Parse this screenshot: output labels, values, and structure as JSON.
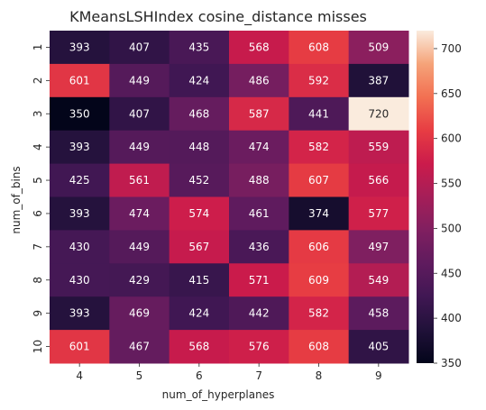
{
  "chart_data": {
    "type": "heatmap",
    "title": "KMeansLSHIndex cosine_distance misses",
    "xlabel": "num_of_hyperplanes",
    "ylabel": "num_of_bins",
    "x_categories": [
      "4",
      "5",
      "6",
      "7",
      "8",
      "9"
    ],
    "y_categories": [
      "1",
      "2",
      "3",
      "4",
      "5",
      "6",
      "7",
      "8",
      "9",
      "10"
    ],
    "values": [
      [
        393,
        407,
        435,
        568,
        608,
        509
      ],
      [
        601,
        449,
        424,
        486,
        592,
        387
      ],
      [
        350,
        407,
        468,
        587,
        441,
        720
      ],
      [
        393,
        449,
        448,
        474,
        582,
        559
      ],
      [
        425,
        561,
        452,
        488,
        607,
        566
      ],
      [
        393,
        474,
        574,
        461,
        374,
        577
      ],
      [
        430,
        449,
        567,
        436,
        606,
        497
      ],
      [
        430,
        429,
        415,
        571,
        609,
        549
      ],
      [
        393,
        469,
        424,
        442,
        582,
        458
      ],
      [
        601,
        467,
        568,
        576,
        608,
        405
      ]
    ],
    "colorbar": {
      "range": [
        350,
        720
      ],
      "ticks": [
        "350",
        "400",
        "450",
        "500",
        "550",
        "600",
        "650",
        "700"
      ],
      "colormap": "rocket"
    },
    "annotations": true
  }
}
